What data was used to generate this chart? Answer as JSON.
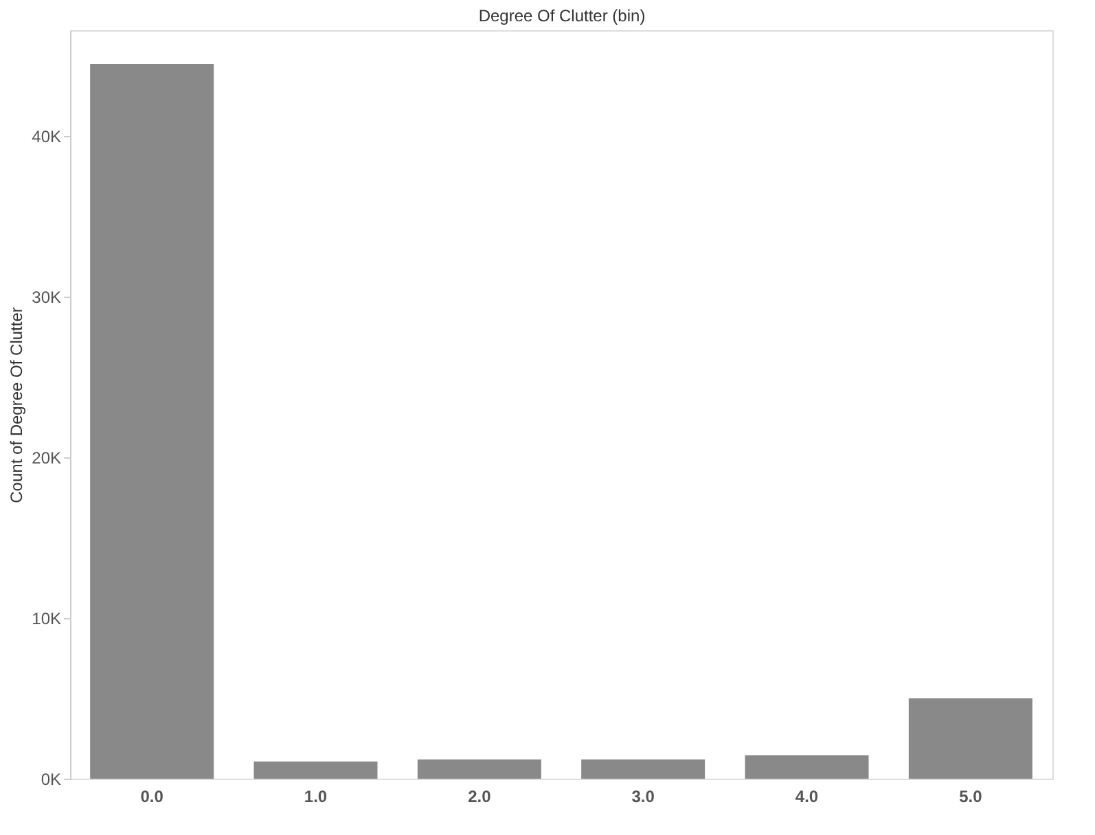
{
  "chart_data": {
    "type": "bar",
    "xlabel": "Degree Of Clutter (bin)",
    "ylabel": "Count of Degree Of Clutter",
    "categories": [
      "0.0",
      "1.0",
      "2.0",
      "3.0",
      "4.0",
      "5.0"
    ],
    "values": [
      44500,
      1070,
      1200,
      1200,
      1450,
      5000
    ],
    "color": "#898989",
    "ylim": [
      0,
      46600
    ],
    "yticks": [
      {
        "value": 0,
        "label": "0K"
      },
      {
        "value": 10000,
        "label": "10K"
      },
      {
        "value": 20000,
        "label": "20K"
      },
      {
        "value": 30000,
        "label": "30K"
      },
      {
        "value": 40000,
        "label": "40K"
      }
    ],
    "grid": false
  }
}
